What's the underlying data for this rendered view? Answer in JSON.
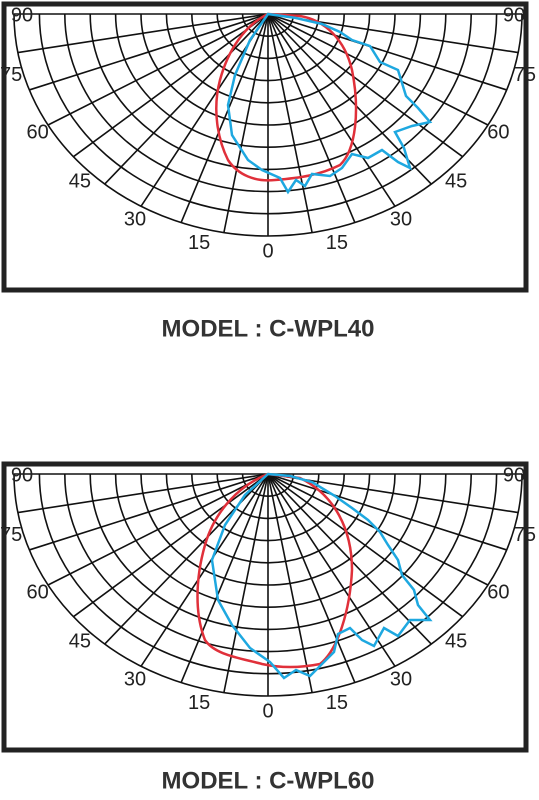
{
  "panels": [
    {
      "title": "MODEL : C-WPL40",
      "angle_labels": [
        "0",
        "15",
        "30",
        "45",
        "60",
        "75",
        "90"
      ]
    },
    {
      "title": "MODEL : C-WPL60",
      "angle_labels": [
        "0",
        "15",
        "30",
        "45",
        "60",
        "75",
        "90"
      ]
    }
  ]
}
